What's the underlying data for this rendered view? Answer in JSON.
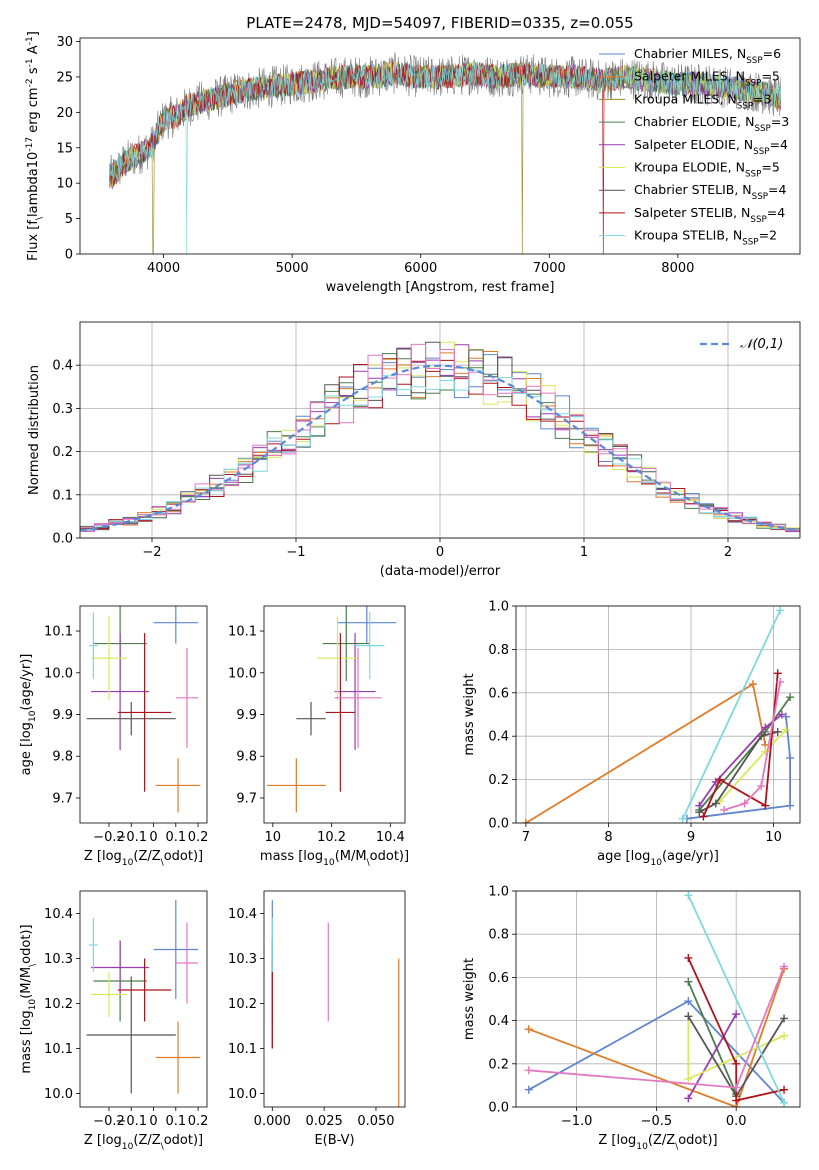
{
  "figure": {
    "background": "#ffffff"
  },
  "chart_data": [
    {
      "id": "spectrum",
      "type": "line",
      "title": "PLATE=2478, MJD=54097, FIBERID=0335, z=0.055",
      "xlabel": "wavelength [Angstrom, rest frame]",
      "ylabel": "Flux [f$_\\lambda$10$^{-17}$ erg cm$^{-2}$ s$^{-1}$ A$^{-1}$]",
      "xlim": [
        3350,
        8950
      ],
      "ylim": [
        0,
        30.5
      ],
      "xticks": [
        4000,
        5000,
        6000,
        7000,
        8000
      ],
      "yticks": [
        0,
        5,
        10,
        15,
        20,
        25,
        30
      ],
      "grid": false,
      "legend_position": "top-right",
      "data_shape": {
        "x": [
          3600,
          3700,
          3800,
          3900,
          4000,
          4100,
          4200,
          4400,
          4600,
          4800,
          5000,
          5200,
          5400,
          5600,
          5800,
          6000,
          6200,
          6400,
          6600,
          6800,
          7000,
          7200,
          7400,
          7600,
          7800,
          8000,
          8200,
          8400,
          8600,
          8800
        ],
        "y": [
          11,
          13,
          14,
          15,
          19,
          19.5,
          21,
          22,
          23,
          23.5,
          24,
          24.5,
          25,
          25,
          25.5,
          25,
          25,
          25.5,
          25,
          25.5,
          25,
          25,
          24.5,
          25,
          24.5,
          24,
          24,
          23.5,
          23,
          22
        ]
      },
      "data_spikes": [
        {
          "series": "Kroupa MILES",
          "x": 3920,
          "low": 0
        },
        {
          "series": "Kroupa STELIB",
          "x": 4180,
          "low": 0
        },
        {
          "series": "Kroupa MILES",
          "x": 6790,
          "low": 0
        },
        {
          "series": "Salpeter STELIB",
          "x": 7420,
          "low": 0
        }
      ],
      "data_range": {
        "series": "Salpeter STELIB",
        "x": [
          3580,
          7430
        ]
      },
      "series": [
        {
          "name": "Chabrier MILES, N$_{SSP}$=6",
          "color": "#5f85cf"
        },
        {
          "name": "Salpeter MILES, N$_{SSP}$=5",
          "color": "#e07b27"
        },
        {
          "name": "Kroupa MILES, N$_{SSP}$=3",
          "color": "#9a8a2a"
        },
        {
          "name": "Chabrier ELODIE, N$_{SSP}$=3",
          "color": "#4b7d4b"
        },
        {
          "name": "Salpeter ELODIE, N$_{SSP}$=4",
          "color": "#9a3db0"
        },
        {
          "name": "Kroupa ELODIE, N$_{SSP}$=5",
          "color": "#d8e85a"
        },
        {
          "name": "Chabrier STELIB, N$_{SSP}$=4",
          "color": "#555555"
        },
        {
          "name": "Salpeter STELIB, N$_{SSP}$=4",
          "color": "#b0121b"
        },
        {
          "name": "Kroupa STELIB, N$_{SSP}$=2",
          "color": "#7fd8df"
        }
      ],
      "data_color": "#777777"
    },
    {
      "id": "residuals",
      "type": "histogram",
      "xlabel": "(data-model)/error",
      "ylabel": "Normed distribution",
      "xlim": [
        -2.5,
        2.5
      ],
      "ylim": [
        0,
        0.5
      ],
      "xticks": [
        -2,
        -1,
        0,
        1,
        2
      ],
      "yticks": [
        0.0,
        0.1,
        0.2,
        0.3,
        0.4
      ],
      "grid": true,
      "legend_position": "top-right",
      "bin_width": 0.1,
      "reference_curve": {
        "name": "$\\mathcal{N}(0,1)$",
        "color": "#5b8bd6",
        "style": "dashed",
        "mu": 0,
        "sigma": 1
      },
      "histogram_colors": [
        "#5f85cf",
        "#e07b27",
        "#4b7d4b",
        "#9a3db0",
        "#d8e85a",
        "#555555",
        "#b0121b",
        "#7fd8df",
        "#e377c2"
      ],
      "histogram_heights": [
        [
          0.4,
          0.35,
          0.405,
          0.415,
          0.405,
          0.45,
          0.38,
          0.385,
          0.34,
          0.39
        ],
        [
          0.375,
          0.41,
          0.395,
          0.385,
          0.425,
          0.35,
          0.41,
          0.37,
          0.39,
          0.4
        ],
        [
          0.39,
          0.38,
          0.43,
          0.37,
          0.4,
          0.41,
          0.395,
          0.39,
          0.39,
          0.4
        ]
      ]
    },
    {
      "id": "age_vs_Z",
      "type": "errorbar",
      "xlabel": "Z [log$_{10}$(Z/Z$_\\odot$)]",
      "ylabel": "age  [log$_{10}$(age/yr)]",
      "xlim": [
        -0.33,
        0.24
      ],
      "ylim": [
        9.64,
        10.16
      ],
      "xticks": [
        -0.2,
        -0.1,
        0.0,
        0.1,
        0.2
      ],
      "yticks": [
        9.7,
        9.8,
        9.9,
        10.0,
        10.1
      ],
      "grid": false,
      "points": [
        {
          "x": 0.1,
          "y": 10.12,
          "xerr": 0.1,
          "yerr": 0.05,
          "color": "#5f85cf"
        },
        {
          "x": 0.11,
          "y": 9.73,
          "xerr": 0.1,
          "yerr": 0.065,
          "color": "#e07b27"
        },
        {
          "x": -0.15,
          "y": 10.07,
          "xerr": 0.12,
          "yerr": 0.09,
          "color": "#4b7d4b"
        },
        {
          "x": -0.15,
          "y": 9.955,
          "xerr": 0.13,
          "yerr": 0.14,
          "color": "#9a3db0"
        },
        {
          "x": -0.2,
          "y": 10.035,
          "xerr": 0.08,
          "yerr": 0.1,
          "color": "#d8e85a"
        },
        {
          "x": -0.1,
          "y": 9.89,
          "xerr": 0.2,
          "yerr": 0.04,
          "color": "#555555"
        },
        {
          "x": -0.04,
          "y": 9.905,
          "xerr": 0.12,
          "yerr": 0.19,
          "color": "#b0121b"
        },
        {
          "x": -0.27,
          "y": 10.065,
          "xerr": 0.02,
          "yerr": 0.08,
          "color": "#7fd8df"
        },
        {
          "x": 0.15,
          "y": 9.94,
          "xerr": 0.05,
          "yerr": 0.12,
          "color": "#e377c2"
        }
      ]
    },
    {
      "id": "age_vs_mass",
      "type": "errorbar",
      "xlabel": "mass [log$_{10}$(M/M$_\\odot$)]",
      "ylabel": "",
      "xlim": [
        9.97,
        10.45
      ],
      "ylim": [
        9.64,
        10.16
      ],
      "xticks": [
        10.0,
        10.2,
        10.4
      ],
      "yticks": [
        9.7,
        9.8,
        9.9,
        10.0,
        10.1
      ],
      "grid": false,
      "points": [
        {
          "x": 10.32,
          "y": 10.12,
          "xerr": 0.1,
          "yerr": 0.05,
          "color": "#5f85cf"
        },
        {
          "x": 10.08,
          "y": 9.73,
          "xerr": 0.1,
          "yerr": 0.065,
          "color": "#e07b27"
        },
        {
          "x": 10.25,
          "y": 10.07,
          "xerr": 0.08,
          "yerr": 0.09,
          "color": "#4b7d4b"
        },
        {
          "x": 10.28,
          "y": 9.955,
          "xerr": 0.07,
          "yerr": 0.14,
          "color": "#9a3db0"
        },
        {
          "x": 10.22,
          "y": 10.035,
          "xerr": 0.07,
          "yerr": 0.1,
          "color": "#d8e85a"
        },
        {
          "x": 10.13,
          "y": 9.89,
          "xerr": 0.05,
          "yerr": 0.04,
          "color": "#555555"
        },
        {
          "x": 10.23,
          "y": 9.905,
          "xerr": 0.05,
          "yerr": 0.19,
          "color": "#b0121b"
        },
        {
          "x": 10.33,
          "y": 10.065,
          "xerr": 0.05,
          "yerr": 0.08,
          "color": "#7fd8df"
        },
        {
          "x": 10.29,
          "y": 9.94,
          "xerr": 0.08,
          "yerr": 0.12,
          "color": "#e377c2"
        }
      ]
    },
    {
      "id": "weight_vs_age",
      "type": "line",
      "xlabel": "age  [log$_{10}$(age/yr)]",
      "ylabel": "mass weight",
      "xlim": [
        6.88,
        10.32
      ],
      "ylim": [
        0,
        1.0
      ],
      "xticks": [
        7,
        8,
        9,
        10
      ],
      "yticks": [
        0.0,
        0.2,
        0.4,
        0.6,
        0.8,
        1.0
      ],
      "grid": true,
      "series": [
        {
          "color": "#5f85cf",
          "x": [
            8.95,
            10.2,
            10.2,
            10.15
          ],
          "y": [
            0.02,
            0.08,
            0.3,
            0.49
          ]
        },
        {
          "color": "#e07b27",
          "x": [
            7.0,
            9.75,
            9.9
          ],
          "y": [
            0.0,
            0.64,
            0.36
          ]
        },
        {
          "color": "#4b7d4b",
          "x": [
            9.1,
            9.9,
            10.2
          ],
          "y": [
            0.06,
            0.42,
            0.58
          ]
        },
        {
          "color": "#9a3db0",
          "x": [
            9.1,
            9.3,
            9.9,
            10.1
          ],
          "y": [
            0.08,
            0.19,
            0.44,
            0.5
          ]
        },
        {
          "color": "#d8e85a",
          "x": [
            9.35,
            9.9,
            10.15
          ],
          "y": [
            0.1,
            0.33,
            0.43
          ]
        },
        {
          "color": "#555555",
          "x": [
            9.1,
            9.3,
            9.85,
            10.05
          ],
          "y": [
            0.05,
            0.09,
            0.4,
            0.42
          ]
        },
        {
          "color": "#b0121b",
          "x": [
            9.15,
            9.35,
            9.9,
            10.05
          ],
          "y": [
            0.03,
            0.2,
            0.08,
            0.69
          ]
        },
        {
          "color": "#7fd8df",
          "x": [
            8.9,
            10.08
          ],
          "y": [
            0.02,
            0.98
          ]
        },
        {
          "color": "#e377c2",
          "x": [
            9.4,
            9.65,
            9.85,
            10.08
          ],
          "y": [
            0.06,
            0.09,
            0.17,
            0.65
          ]
        }
      ]
    },
    {
      "id": "mass_vs_Z",
      "type": "errorbar",
      "xlabel": "Z [log$_{10}$(Z/Z$_\\odot$)]",
      "ylabel": "mass [log$_{10}$(M/M$_\\odot$)]",
      "xlim": [
        -0.33,
        0.24
      ],
      "ylim": [
        9.97,
        10.45
      ],
      "xticks": [
        -0.2,
        -0.1,
        0.0,
        0.1,
        0.2
      ],
      "yticks": [
        10.0,
        10.1,
        10.2,
        10.3,
        10.4
      ],
      "grid": false,
      "points": [
        {
          "x": 0.1,
          "y": 10.32,
          "xerr": 0.1,
          "yerr": 0.11,
          "color": "#5f85cf"
        },
        {
          "x": 0.11,
          "y": 10.08,
          "xerr": 0.1,
          "yerr": 0.08,
          "color": "#e07b27"
        },
        {
          "x": -0.15,
          "y": 10.25,
          "xerr": 0.12,
          "yerr": 0.09,
          "color": "#4b7d4b"
        },
        {
          "x": -0.15,
          "y": 10.28,
          "xerr": 0.13,
          "yerr": 0.06,
          "color": "#9a3db0"
        },
        {
          "x": -0.2,
          "y": 10.22,
          "xerr": 0.08,
          "yerr": 0.05,
          "color": "#d8e85a"
        },
        {
          "x": -0.1,
          "y": 10.13,
          "xerr": 0.2,
          "yerr": 0.13,
          "color": "#555555"
        },
        {
          "x": -0.04,
          "y": 10.23,
          "xerr": 0.12,
          "yerr": 0.07,
          "color": "#b0121b"
        },
        {
          "x": -0.27,
          "y": 10.33,
          "xerr": 0.02,
          "yerr": 0.06,
          "color": "#7fd8df"
        },
        {
          "x": 0.15,
          "y": 10.29,
          "xerr": 0.05,
          "yerr": 0.09,
          "color": "#e377c2"
        }
      ]
    },
    {
      "id": "mass_vs_ebv",
      "type": "errorbar",
      "xlabel": "E(B-V)",
      "ylabel": "",
      "xlim": [
        -0.004,
        0.064
      ],
      "ylim": [
        9.97,
        10.45
      ],
      "xticks": [
        0.0,
        0.025,
        0.05
      ],
      "xticklabels": [
        "0.000",
        "0.025",
        "0.050"
      ],
      "yticks": [
        10.0,
        10.1,
        10.2,
        10.3,
        10.4
      ],
      "grid": false,
      "points": [
        {
          "x": 0.0,
          "y": 10.32,
          "xerr": 0,
          "yerr": 0.11,
          "color": "#5f85cf"
        },
        {
          "x": 0.061,
          "y": 10.08,
          "xerr": 0,
          "yerr": 0.22,
          "color": "#e07b27"
        },
        {
          "x": 0.0,
          "y": 10.25,
          "xerr": 0,
          "yerr": 0.09,
          "color": "#4b7d4b"
        },
        {
          "x": 0.0,
          "y": 10.28,
          "xerr": 0,
          "yerr": 0.06,
          "color": "#9a3db0"
        },
        {
          "x": 0.0,
          "y": 10.22,
          "xerr": 0,
          "yerr": 0.05,
          "color": "#d8e85a"
        },
        {
          "x": 0.0,
          "y": 10.2,
          "xerr": 0,
          "yerr": 0.1,
          "color": "#555555"
        },
        {
          "x": 0.0,
          "y": 10.2,
          "xerr": 0,
          "yerr": 0.1,
          "color": "#b0121b"
        },
        {
          "x": 0.0,
          "y": 10.33,
          "xerr": 0,
          "yerr": 0.06,
          "color": "#7fd8df"
        },
        {
          "x": 0.027,
          "y": 10.27,
          "xerr": 0,
          "yerr": 0.11,
          "color": "#e377c2"
        }
      ]
    },
    {
      "id": "weight_vs_Z",
      "type": "line",
      "xlabel": "Z [log$_{10}$(Z/Z$_\\odot$)]",
      "ylabel": "mass weight",
      "xlim": [
        -1.38,
        0.4
      ],
      "ylim": [
        0,
        1.0
      ],
      "xticks": [
        -1.0,
        -0.5,
        0.0
      ],
      "xticklabels": [
        "−1.0",
        "−0.5",
        "0.0"
      ],
      "yticks": [
        0.0,
        0.2,
        0.4,
        0.6,
        0.8,
        1.0
      ],
      "grid": true,
      "series": [
        {
          "color": "#5f85cf",
          "x": [
            -1.3,
            -0.3,
            0.3
          ],
          "y": [
            0.08,
            0.49,
            0.02
          ]
        },
        {
          "color": "#e07b27",
          "x": [
            -1.3,
            0.0,
            0.3
          ],
          "y": [
            0.36,
            0.0,
            0.64
          ]
        },
        {
          "color": "#4b7d4b",
          "x": [
            -0.3,
            0.0
          ],
          "y": [
            0.58,
            0.06
          ]
        },
        {
          "color": "#9a3db0",
          "x": [
            -0.3,
            0.0
          ],
          "y": [
            0.04,
            0.43
          ]
        },
        {
          "color": "#d8e85a",
          "x": [
            -0.3,
            -0.3,
            0.3
          ],
          "y": [
            0.42,
            0.13,
            0.33
          ]
        },
        {
          "color": "#555555",
          "x": [
            -0.3,
            0.0,
            0.3
          ],
          "y": [
            0.42,
            0.05,
            0.41
          ]
        },
        {
          "color": "#b0121b",
          "x": [
            -0.3,
            0.0,
            0.0,
            0.3
          ],
          "y": [
            0.69,
            0.2,
            0.03,
            0.08
          ]
        },
        {
          "color": "#7fd8df",
          "x": [
            -0.3,
            0.3
          ],
          "y": [
            0.98,
            0.02
          ]
        },
        {
          "color": "#e377c2",
          "x": [
            -1.3,
            0.0,
            0.3
          ],
          "y": [
            0.17,
            0.09,
            0.65
          ]
        }
      ]
    }
  ]
}
